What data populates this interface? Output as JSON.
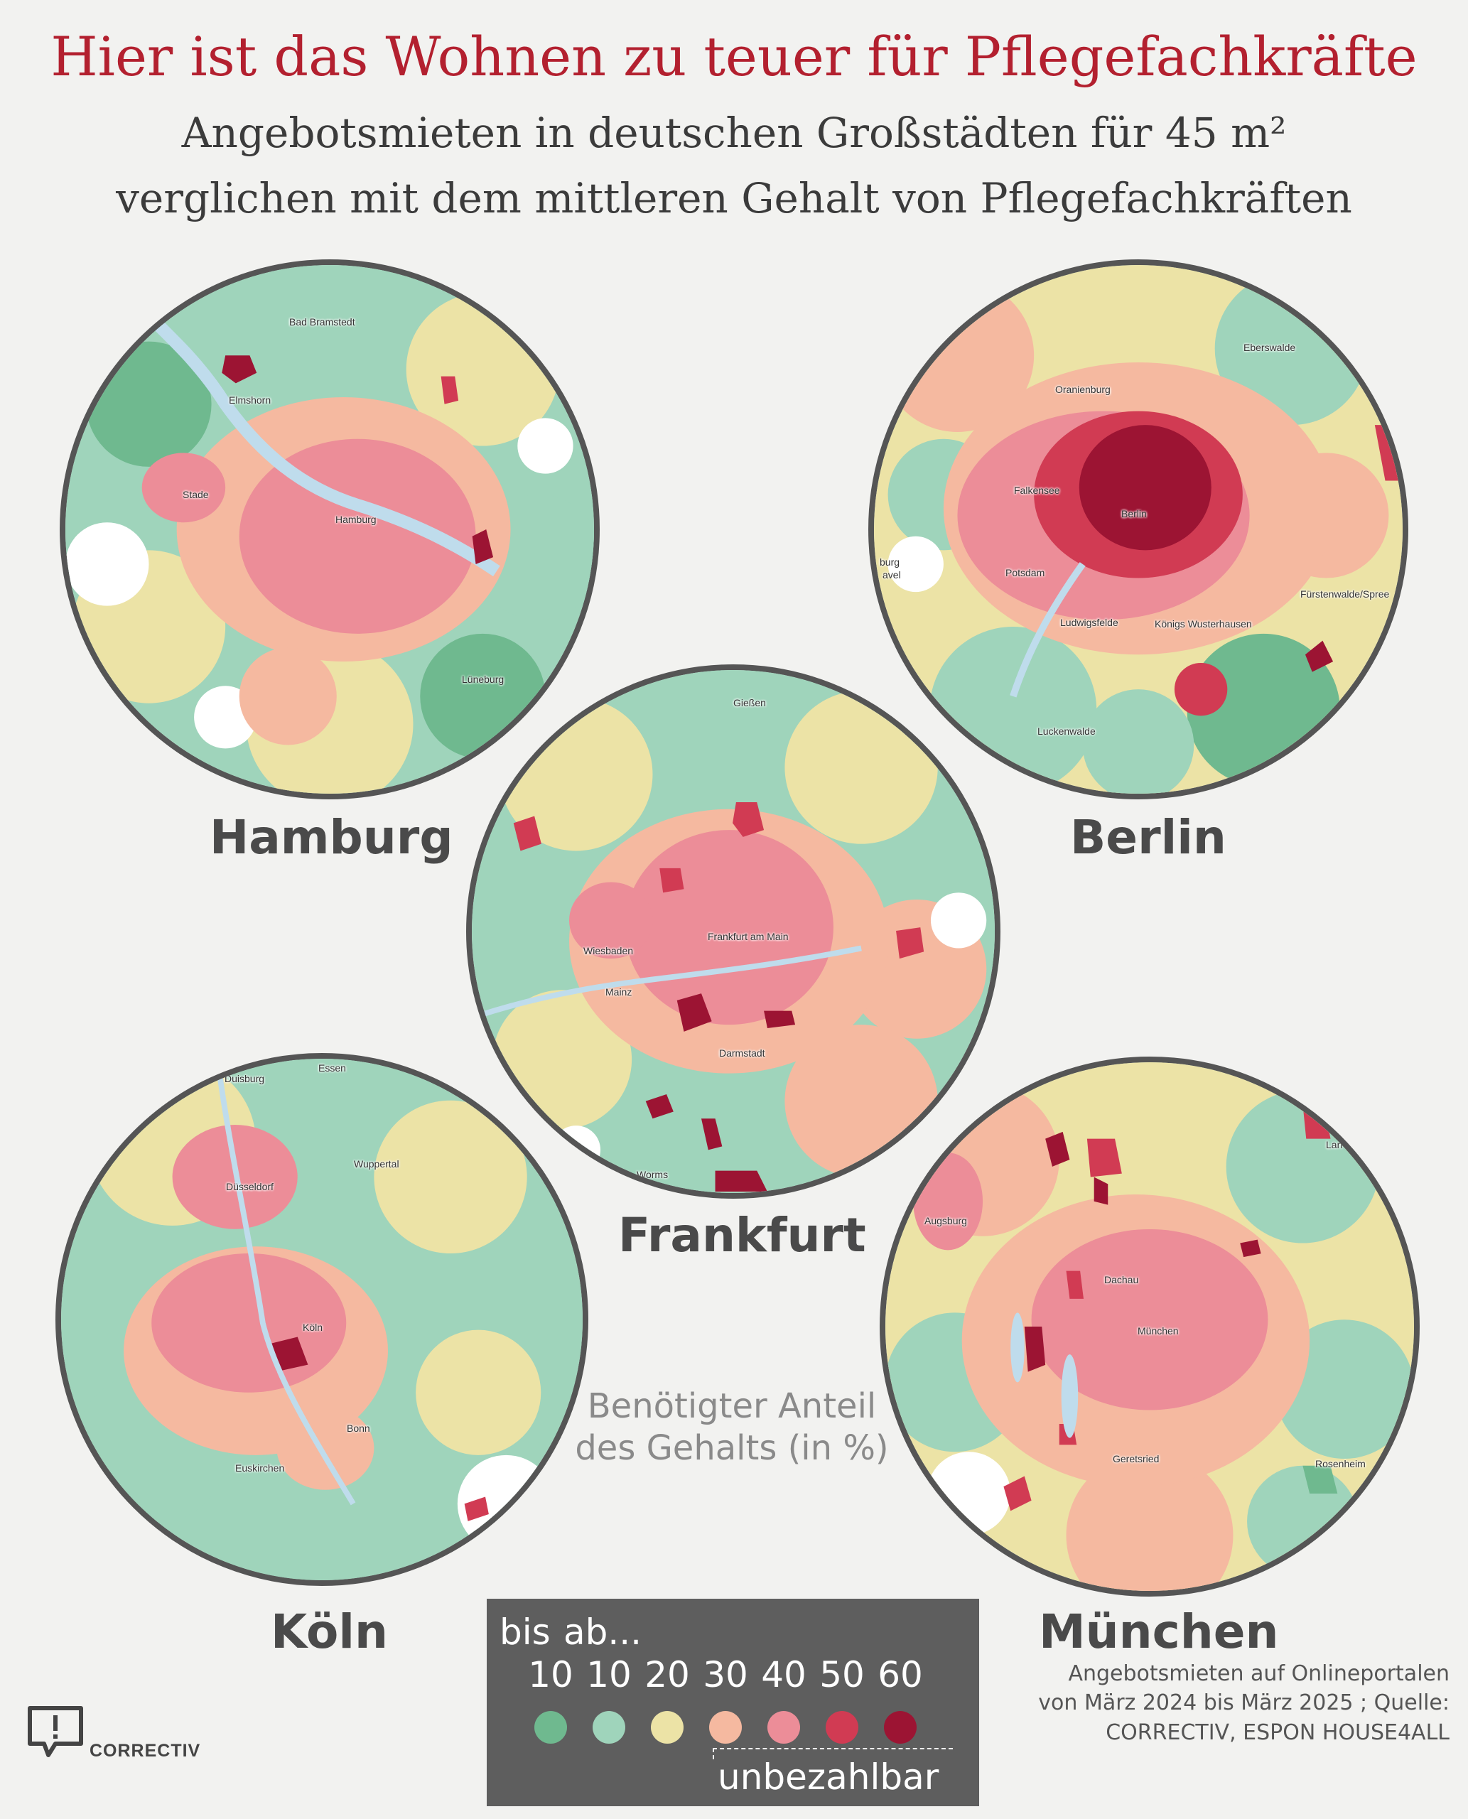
{
  "header": {
    "title": "Hier ist das Wohnen zu teuer für Pflegefachkräfte",
    "subtitle_line1": "Angebotsmieten in deutschen Großstädten für 45 m²",
    "subtitle_line2": "verglichen mit dem mittleren Gehalt von Pflegefachkräften"
  },
  "colors": {
    "c1": "#6fb98f",
    "c2": "#9fd4bb",
    "c3": "#ece3a6",
    "c4": "#f5b9a0",
    "c5": "#ec8d98",
    "c6": "#d13b53",
    "c7": "#9c1433",
    "water": "#bfdcec",
    "none": "#ffffff"
  },
  "maps": {
    "hamburg": {
      "label": "Hamburg",
      "places": [
        "Bad Bramstedt",
        "Elmshorn",
        "Stade",
        "Hamburg",
        "Lüneburg"
      ]
    },
    "berlin": {
      "label": "Berlin",
      "places": [
        "Eberswalde",
        "Oranienburg",
        "Falkensee",
        "Berlin",
        "Potsdam",
        "burg",
        "avel",
        "Ludwigsfelde",
        "Königs Wusterhausen",
        "Fürstenwalde/Spree",
        "Luckenwalde"
      ]
    },
    "frankfurt": {
      "label": "Frankfurt",
      "places": [
        "Gießen",
        "Wiesbaden",
        "Frankfurt am Main",
        "Mainz",
        "Darmstadt",
        "Worms"
      ]
    },
    "koeln": {
      "label": "Köln",
      "places": [
        "Duisburg",
        "Essen",
        "Wuppertal",
        "Düsseldorf",
        "Köln",
        "Bonn",
        "Euskirchen"
      ]
    },
    "muenchen": {
      "label": "München",
      "places": [
        "Augsburg",
        "Lan",
        "Dachau",
        "München",
        "Geretsried",
        "Rosenheim"
      ]
    }
  },
  "legend": {
    "heading_line1": "Benötigter Anteil",
    "heading_line2": "des Gehalts (in %)",
    "bis": "bis",
    "ab": "ab...",
    "thresholds": [
      "10",
      "10",
      "20",
      "30",
      "40",
      "50",
      "60"
    ],
    "unaffordable": "unbezahlbar"
  },
  "logo": {
    "text": "CORRECTIV"
  },
  "source": {
    "line1": "Angebotsmieten auf Onlineportalen",
    "line2": "von März 2024 bis März 2025 ; Quelle:",
    "line3": "CORRECTIV, ESPON HOUSE4ALL"
  }
}
